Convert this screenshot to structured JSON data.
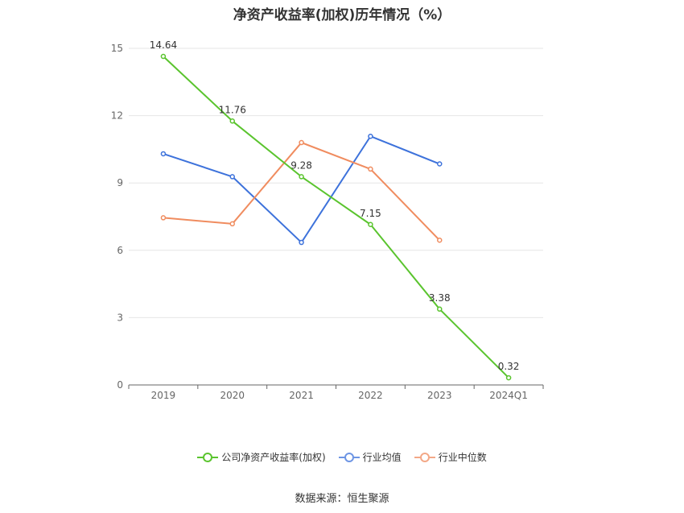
{
  "title": "净资产收益率(加权)历年情况（%）",
  "source": "数据来源：恒生聚源",
  "chart_data": {
    "type": "line",
    "categories": [
      "2019",
      "2020",
      "2021",
      "2022",
      "2023",
      "2024Q1"
    ],
    "ylim": [
      0,
      15
    ],
    "yticks": [
      0,
      3,
      6,
      9,
      12,
      15
    ],
    "grid": true,
    "legend_position": "bottom",
    "series": [
      {
        "name": "公司净资产收益率(加权)",
        "color": "#5ac42e",
        "values": [
          14.64,
          11.76,
          9.28,
          7.15,
          3.38,
          0.32
        ],
        "labels": [
          "14.64",
          "11.76",
          "9.28",
          "7.15",
          "3.38",
          "0.32"
        ]
      },
      {
        "name": "行业均值",
        "color": "#3d72db",
        "values": [
          10.3,
          9.28,
          6.35,
          11.08,
          9.85,
          null
        ]
      },
      {
        "name": "行业中位数",
        "color": "#f08c5f",
        "values": [
          7.45,
          7.18,
          10.8,
          9.62,
          6.45,
          null
        ]
      }
    ]
  }
}
